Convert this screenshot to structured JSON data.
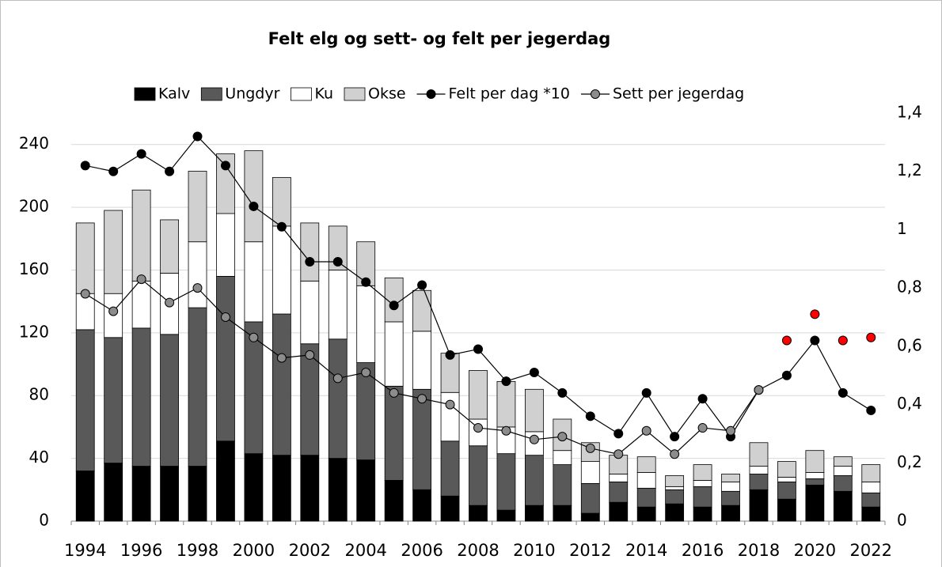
{
  "chart_data": {
    "type": "bar",
    "title": "Felt elg og sett- og felt per jegerdag",
    "categories": [
      "1994",
      null,
      "1996",
      null,
      "1998",
      null,
      "2000",
      null,
      "2002",
      null,
      "2004",
      null,
      "2006",
      null,
      "2008",
      null,
      "2010",
      null,
      "2012",
      null,
      "2014",
      null,
      "2016",
      null,
      "2018",
      null,
      "2020",
      null,
      "2022"
    ],
    "stacked": true,
    "series": [
      {
        "name": "Kalv",
        "color": "#000000",
        "values": [
          32,
          37,
          35,
          35,
          35,
          51,
          43,
          42,
          42,
          40,
          39,
          26,
          20,
          16,
          10,
          7,
          10,
          10,
          5,
          12,
          9,
          11,
          9,
          10,
          20,
          14,
          23,
          19,
          9
        ]
      },
      {
        "name": "Ungdyr",
        "color": "#595959",
        "values": [
          90,
          80,
          88,
          84,
          101,
          105,
          84,
          90,
          71,
          76,
          62,
          60,
          64,
          35,
          38,
          36,
          32,
          26,
          19,
          13,
          12,
          9,
          13,
          9,
          10,
          11,
          4,
          10,
          9
        ]
      },
      {
        "name": "Ku",
        "color": "#ffffff",
        "values": [
          23,
          28,
          30,
          39,
          42,
          40,
          51,
          56,
          40,
          44,
          49,
          41,
          37,
          31,
          17,
          17,
          15,
          9,
          14,
          5,
          10,
          2,
          4,
          6,
          5,
          3,
          4,
          6,
          7
        ]
      },
      {
        "name": "Okse",
        "color": "#d0d0d0",
        "values": [
          45,
          53,
          58,
          34,
          45,
          38,
          58,
          31,
          37,
          28,
          28,
          28,
          26,
          25,
          31,
          29,
          27,
          20,
          12,
          12,
          10,
          7,
          10,
          5,
          15,
          10,
          14,
          6,
          11
        ]
      },
      {
        "name": "Felt per dag *10",
        "type": "line",
        "axis": "y2",
        "color": "#000000",
        "marker_color": "#000000",
        "values": [
          1.22,
          1.2,
          1.26,
          1.2,
          1.32,
          1.22,
          1.08,
          1.01,
          0.89,
          0.89,
          0.82,
          0.74,
          0.81,
          0.57,
          0.59,
          0.48,
          0.51,
          0.44,
          0.36,
          0.3,
          0.44,
          0.29,
          0.42,
          0.29,
          0.45,
          0.5,
          0.62,
          0.44,
          0.38
        ]
      },
      {
        "name": "Sett per jegerdag",
        "type": "line",
        "axis": "y2",
        "color": "#000000",
        "marker_color": "#8c8c8c",
        "values": [
          0.78,
          0.72,
          0.83,
          0.75,
          0.8,
          0.7,
          0.63,
          0.56,
          0.57,
          0.49,
          0.51,
          0.44,
          0.42,
          0.4,
          0.32,
          0.31,
          0.28,
          0.29,
          0.25,
          0.23,
          0.31,
          0.23,
          0.32,
          0.31,
          0.45,
          null,
          null,
          null,
          null
        ]
      },
      {
        "type": "scatter",
        "axis": "y2",
        "marker_color": "#ff0000",
        "values": [
          null,
          null,
          null,
          null,
          null,
          null,
          null,
          null,
          null,
          null,
          null,
          null,
          null,
          null,
          null,
          null,
          null,
          null,
          null,
          null,
          null,
          null,
          null,
          null,
          null,
          0.62,
          0.71,
          0.62,
          0.63
        ]
      }
    ],
    "ylim": [
      0,
      260
    ],
    "yticks": [
      0,
      40,
      80,
      120,
      160,
      200,
      240
    ],
    "y2lim": [
      0,
      1.4
    ],
    "y2ticks": [
      0,
      {
        "value": 0.2,
        "label": "0,2"
      },
      {
        "value": 0.4,
        "label": "0,4"
      },
      {
        "value": 0.6,
        "label": "0,6"
      },
      {
        "value": 0.8,
        "label": "0,8"
      },
      1,
      {
        "value": 1.2,
        "label": "1,2"
      },
      {
        "value": 1.4,
        "label": "1,4"
      }
    ],
    "grid": true,
    "legend": "top"
  }
}
